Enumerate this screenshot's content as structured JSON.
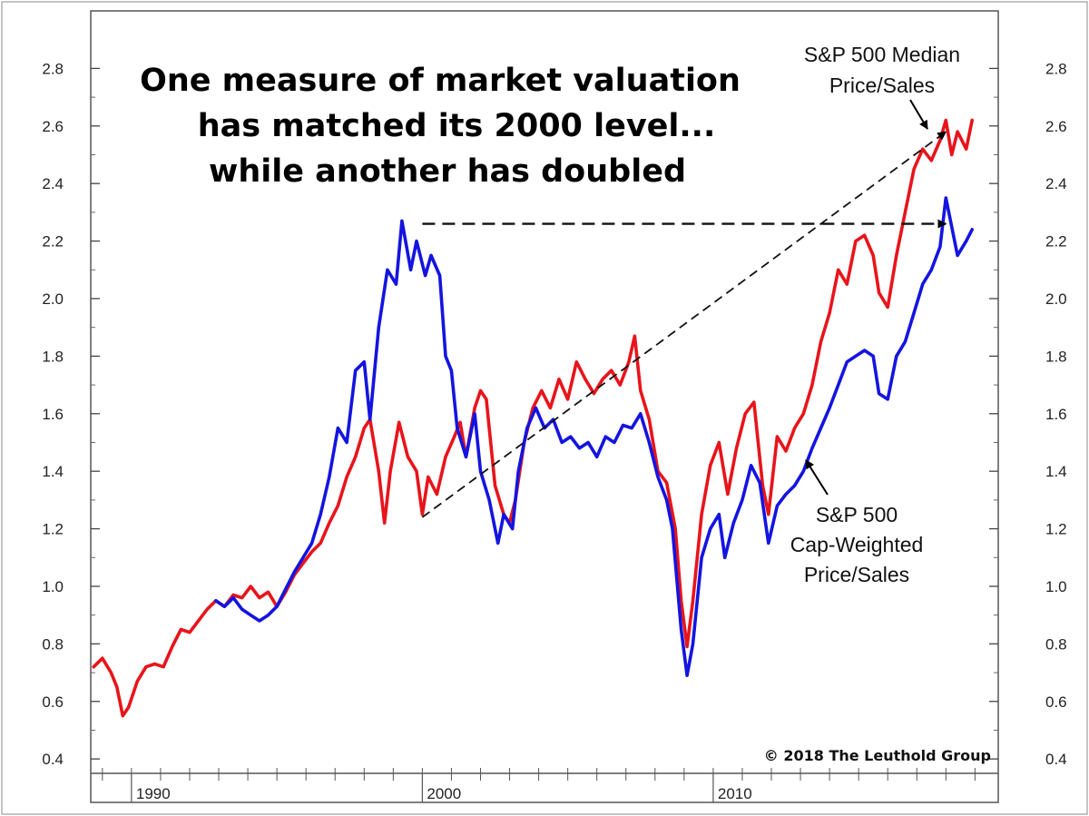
{
  "chart_data": {
    "type": "line",
    "title_lines": [
      "One measure of market valuation",
      "has matched its 2000 level...",
      "while another has doubled"
    ],
    "xlabel": "",
    "ylabel": "",
    "xlim": [
      1988.6,
      2019.8
    ],
    "ylim": [
      0.35,
      3.0
    ],
    "y_ticks": [
      "0.4",
      "0.6",
      "0.8",
      "1.0",
      "1.2",
      "1.4",
      "1.6",
      "1.8",
      "2.0",
      "2.2",
      "2.4",
      "2.6",
      "2.8"
    ],
    "x_ticks": [
      {
        "year": 1990,
        "label": "1990"
      },
      {
        "year": 2000,
        "label": "2000"
      },
      {
        "year": 2010,
        "label": "2010"
      }
    ],
    "grid": false,
    "series": [
      {
        "name": "S&P 500 Median Price/Sales",
        "color": "#e8141b",
        "points": [
          [
            1988.7,
            0.72
          ],
          [
            1989.0,
            0.75
          ],
          [
            1989.3,
            0.7
          ],
          [
            1989.5,
            0.65
          ],
          [
            1989.7,
            0.55
          ],
          [
            1989.9,
            0.58
          ],
          [
            1990.2,
            0.67
          ],
          [
            1990.5,
            0.72
          ],
          [
            1990.8,
            0.73
          ],
          [
            1991.1,
            0.72
          ],
          [
            1991.4,
            0.79
          ],
          [
            1991.7,
            0.85
          ],
          [
            1992.0,
            0.84
          ],
          [
            1992.3,
            0.88
          ],
          [
            1992.6,
            0.92
          ],
          [
            1992.9,
            0.95
          ],
          [
            1993.2,
            0.93
          ],
          [
            1993.5,
            0.97
          ],
          [
            1993.8,
            0.96
          ],
          [
            1994.1,
            1.0
          ],
          [
            1994.4,
            0.96
          ],
          [
            1994.7,
            0.98
          ],
          [
            1995.0,
            0.93
          ],
          [
            1995.3,
            0.98
          ],
          [
            1995.6,
            1.04
          ],
          [
            1995.9,
            1.08
          ],
          [
            1996.2,
            1.12
          ],
          [
            1996.5,
            1.15
          ],
          [
            1996.8,
            1.22
          ],
          [
            1997.1,
            1.28
          ],
          [
            1997.4,
            1.38
          ],
          [
            1997.7,
            1.45
          ],
          [
            1998.0,
            1.55
          ],
          [
            1998.2,
            1.58
          ],
          [
            1998.5,
            1.4
          ],
          [
            1998.7,
            1.22
          ],
          [
            1998.9,
            1.4
          ],
          [
            1999.2,
            1.57
          ],
          [
            1999.5,
            1.45
          ],
          [
            1999.8,
            1.4
          ],
          [
            2000.0,
            1.25
          ],
          [
            2000.2,
            1.38
          ],
          [
            2000.5,
            1.32
          ],
          [
            2000.8,
            1.45
          ],
          [
            2001.1,
            1.52
          ],
          [
            2001.3,
            1.57
          ],
          [
            2001.5,
            1.45
          ],
          [
            2001.8,
            1.62
          ],
          [
            2002.0,
            1.68
          ],
          [
            2002.2,
            1.65
          ],
          [
            2002.5,
            1.35
          ],
          [
            2002.8,
            1.25
          ],
          [
            2003.0,
            1.22
          ],
          [
            2003.2,
            1.3
          ],
          [
            2003.5,
            1.5
          ],
          [
            2003.8,
            1.62
          ],
          [
            2004.1,
            1.68
          ],
          [
            2004.4,
            1.62
          ],
          [
            2004.7,
            1.72
          ],
          [
            2005.0,
            1.65
          ],
          [
            2005.3,
            1.78
          ],
          [
            2005.6,
            1.72
          ],
          [
            2005.9,
            1.67
          ],
          [
            2006.2,
            1.72
          ],
          [
            2006.5,
            1.75
          ],
          [
            2006.8,
            1.7
          ],
          [
            2007.1,
            1.78
          ],
          [
            2007.3,
            1.87
          ],
          [
            2007.5,
            1.68
          ],
          [
            2007.8,
            1.58
          ],
          [
            2008.1,
            1.4
          ],
          [
            2008.4,
            1.36
          ],
          [
            2008.7,
            1.2
          ],
          [
            2008.9,
            0.95
          ],
          [
            2009.1,
            0.79
          ],
          [
            2009.3,
            0.95
          ],
          [
            2009.6,
            1.25
          ],
          [
            2009.9,
            1.42
          ],
          [
            2010.2,
            1.5
          ],
          [
            2010.5,
            1.32
          ],
          [
            2010.8,
            1.48
          ],
          [
            2011.1,
            1.6
          ],
          [
            2011.4,
            1.64
          ],
          [
            2011.7,
            1.35
          ],
          [
            2011.9,
            1.25
          ],
          [
            2012.2,
            1.52
          ],
          [
            2012.5,
            1.47
          ],
          [
            2012.8,
            1.55
          ],
          [
            2013.1,
            1.6
          ],
          [
            2013.4,
            1.7
          ],
          [
            2013.7,
            1.85
          ],
          [
            2014.0,
            1.95
          ],
          [
            2014.3,
            2.1
          ],
          [
            2014.6,
            2.05
          ],
          [
            2014.9,
            2.2
          ],
          [
            2015.2,
            2.22
          ],
          [
            2015.5,
            2.15
          ],
          [
            2015.7,
            2.02
          ],
          [
            2016.0,
            1.97
          ],
          [
            2016.3,
            2.15
          ],
          [
            2016.6,
            2.3
          ],
          [
            2016.9,
            2.45
          ],
          [
            2017.2,
            2.52
          ],
          [
            2017.5,
            2.48
          ],
          [
            2017.8,
            2.55
          ],
          [
            2018.0,
            2.62
          ],
          [
            2018.2,
            2.5
          ],
          [
            2018.4,
            2.58
          ],
          [
            2018.7,
            2.52
          ],
          [
            2018.9,
            2.62
          ]
        ]
      },
      {
        "name": "S&P 500 Cap-Weighted Price/Sales",
        "color": "#1414e0",
        "points": [
          [
            1992.9,
            0.95
          ],
          [
            1993.2,
            0.93
          ],
          [
            1993.5,
            0.96
          ],
          [
            1993.8,
            0.92
          ],
          [
            1994.1,
            0.9
          ],
          [
            1994.4,
            0.88
          ],
          [
            1994.7,
            0.9
          ],
          [
            1995.0,
            0.93
          ],
          [
            1995.3,
            0.99
          ],
          [
            1995.6,
            1.05
          ],
          [
            1995.9,
            1.1
          ],
          [
            1996.2,
            1.15
          ],
          [
            1996.5,
            1.25
          ],
          [
            1996.8,
            1.38
          ],
          [
            1997.1,
            1.55
          ],
          [
            1997.4,
            1.5
          ],
          [
            1997.7,
            1.75
          ],
          [
            1998.0,
            1.78
          ],
          [
            1998.2,
            1.58
          ],
          [
            1998.5,
            1.9
          ],
          [
            1998.8,
            2.1
          ],
          [
            1999.1,
            2.05
          ],
          [
            1999.3,
            2.27
          ],
          [
            1999.6,
            2.1
          ],
          [
            1999.8,
            2.2
          ],
          [
            2000.1,
            2.08
          ],
          [
            2000.3,
            2.15
          ],
          [
            2000.6,
            2.08
          ],
          [
            2000.8,
            1.8
          ],
          [
            2001.0,
            1.75
          ],
          [
            2001.2,
            1.55
          ],
          [
            2001.5,
            1.45
          ],
          [
            2001.8,
            1.6
          ],
          [
            2002.0,
            1.4
          ],
          [
            2002.3,
            1.3
          ],
          [
            2002.6,
            1.15
          ],
          [
            2002.8,
            1.25
          ],
          [
            2003.1,
            1.2
          ],
          [
            2003.3,
            1.4
          ],
          [
            2003.6,
            1.55
          ],
          [
            2003.9,
            1.62
          ],
          [
            2004.2,
            1.55
          ],
          [
            2004.5,
            1.58
          ],
          [
            2004.8,
            1.5
          ],
          [
            2005.1,
            1.52
          ],
          [
            2005.4,
            1.48
          ],
          [
            2005.7,
            1.5
          ],
          [
            2006.0,
            1.45
          ],
          [
            2006.3,
            1.52
          ],
          [
            2006.6,
            1.5
          ],
          [
            2006.9,
            1.56
          ],
          [
            2007.2,
            1.55
          ],
          [
            2007.5,
            1.6
          ],
          [
            2007.8,
            1.5
          ],
          [
            2008.1,
            1.38
          ],
          [
            2008.4,
            1.3
          ],
          [
            2008.6,
            1.2
          ],
          [
            2008.9,
            0.85
          ],
          [
            2009.1,
            0.69
          ],
          [
            2009.3,
            0.8
          ],
          [
            2009.6,
            1.1
          ],
          [
            2009.9,
            1.2
          ],
          [
            2010.2,
            1.25
          ],
          [
            2010.4,
            1.1
          ],
          [
            2010.7,
            1.22
          ],
          [
            2011.0,
            1.3
          ],
          [
            2011.3,
            1.42
          ],
          [
            2011.6,
            1.36
          ],
          [
            2011.9,
            1.15
          ],
          [
            2012.2,
            1.28
          ],
          [
            2012.5,
            1.32
          ],
          [
            2012.8,
            1.35
          ],
          [
            2013.1,
            1.4
          ],
          [
            2013.4,
            1.48
          ],
          [
            2013.7,
            1.55
          ],
          [
            2014.0,
            1.62
          ],
          [
            2014.3,
            1.7
          ],
          [
            2014.6,
            1.78
          ],
          [
            2014.9,
            1.8
          ],
          [
            2015.2,
            1.82
          ],
          [
            2015.5,
            1.8
          ],
          [
            2015.7,
            1.67
          ],
          [
            2016.0,
            1.65
          ],
          [
            2016.3,
            1.8
          ],
          [
            2016.6,
            1.85
          ],
          [
            2016.9,
            1.95
          ],
          [
            2017.2,
            2.05
          ],
          [
            2017.5,
            2.1
          ],
          [
            2017.8,
            2.18
          ],
          [
            2018.0,
            2.35
          ],
          [
            2018.2,
            2.25
          ],
          [
            2018.4,
            2.15
          ],
          [
            2018.7,
            2.2
          ],
          [
            2018.9,
            2.24
          ]
        ]
      }
    ],
    "reference_lines": [
      {
        "from": [
          2000.0,
          2.26
        ],
        "to": [
          2018.0,
          2.26
        ],
        "style": "dashed",
        "arrow": true
      },
      {
        "from": [
          2000.0,
          1.24
        ],
        "to": [
          2018.0,
          2.58
        ],
        "style": "dashed",
        "arrow": true
      }
    ],
    "annotations": [
      {
        "id": "median",
        "lines": [
          "S&P 500 Median",
          "Price/Sales"
        ],
        "arrow_to": [
          2017.6,
          2.61
        ]
      },
      {
        "id": "capweighted",
        "lines": [
          "S&P 500",
          "Cap-Weighted",
          "Price/Sales"
        ],
        "arrow_to": [
          2012.9,
          1.45
        ]
      }
    ],
    "copyright": "© 2018 The Leuthold Group"
  }
}
